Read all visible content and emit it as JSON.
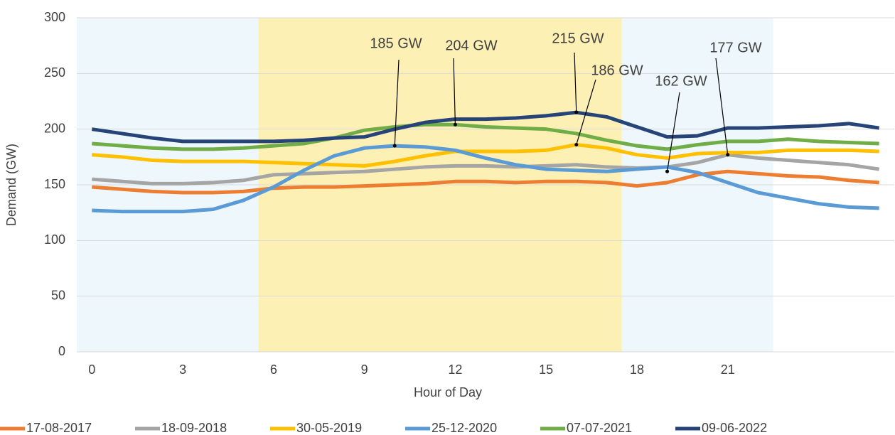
{
  "chart_data": {
    "type": "line",
    "x_label": "Hour of Day",
    "y_label": "Demand (GW)",
    "x": [
      0,
      1,
      2,
      3,
      4,
      5,
      6,
      7,
      8,
      9,
      10,
      11,
      12,
      13,
      14,
      15,
      16,
      17,
      18,
      19,
      20,
      21,
      22,
      23,
      24,
      25,
      26
    ],
    "xlim": [
      -0.5,
      26.5
    ],
    "xticks": [
      0,
      3,
      6,
      9,
      12,
      15,
      18,
      21
    ],
    "ylim": [
      0,
      300
    ],
    "yticks": [
      0,
      50,
      100,
      150,
      200,
      250,
      300
    ],
    "grid": true,
    "legend": "bottom",
    "shaded_regions": [
      {
        "start": -0.5,
        "end": 5.5,
        "color": "#eef7fc"
      },
      {
        "start": 5.5,
        "end": 17.5,
        "color": "#fdf0b5"
      },
      {
        "start": 17.5,
        "end": 22.5,
        "color": "#eef7fc"
      }
    ],
    "series": [
      {
        "name": "17-08-2017",
        "color": "#ed7d31",
        "values": [
          148,
          146,
          144,
          143,
          143,
          144,
          147,
          148,
          148,
          149,
          150,
          151,
          153,
          153,
          152,
          153,
          153,
          152,
          149,
          152,
          159,
          162,
          160,
          158,
          157,
          154,
          152
        ]
      },
      {
        "name": "18-09-2018",
        "color": "#a5a5a5",
        "values": [
          155,
          153,
          151,
          151,
          152,
          154,
          159,
          160,
          161,
          162,
          164,
          166,
          167,
          167,
          166,
          167,
          168,
          166,
          165,
          166,
          170,
          177,
          174,
          172,
          170,
          168,
          164
        ]
      },
      {
        "name": "30-05-2019",
        "color": "#ffc000",
        "values": [
          177,
          175,
          172,
          171,
          171,
          171,
          170,
          169,
          168,
          167,
          171,
          176,
          180,
          180,
          180,
          181,
          186,
          183,
          177,
          174,
          178,
          179,
          179,
          181,
          181,
          181,
          180
        ]
      },
      {
        "name": "25-12-2020",
        "color": "#5b9bd5",
        "values": [
          127,
          126,
          126,
          126,
          128,
          136,
          148,
          163,
          176,
          183,
          185,
          184,
          181,
          174,
          168,
          164,
          163,
          162,
          164,
          166,
          161,
          152,
          143,
          138,
          133,
          130,
          129
        ]
      },
      {
        "name": "07-07-2021",
        "color": "#70ad47",
        "values": [
          187,
          185,
          183,
          182,
          182,
          183,
          185,
          187,
          192,
          199,
          202,
          204,
          204,
          202,
          201,
          200,
          196,
          190,
          185,
          182,
          186,
          189,
          189,
          191,
          189,
          188,
          187
        ]
      },
      {
        "name": "09-06-2022",
        "color": "#264478",
        "values": [
          200,
          196,
          192,
          189,
          189,
          189,
          189,
          190,
          192,
          193,
          200,
          206,
          209,
          209,
          210,
          212,
          215,
          211,
          202,
          193,
          194,
          201,
          201,
          202,
          203,
          205,
          201
        ]
      }
    ],
    "annotations": [
      {
        "label": "185 GW",
        "x": 10,
        "y": 185
      },
      {
        "label": "204 GW",
        "x": 12,
        "y": 204
      },
      {
        "label": "215 GW",
        "x": 16,
        "y": 215
      },
      {
        "label": "186 GW",
        "x": 16,
        "y": 186
      },
      {
        "label": "162 GW",
        "x": 19,
        "y": 162
      },
      {
        "label": "177 GW",
        "x": 21,
        "y": 177
      }
    ]
  }
}
